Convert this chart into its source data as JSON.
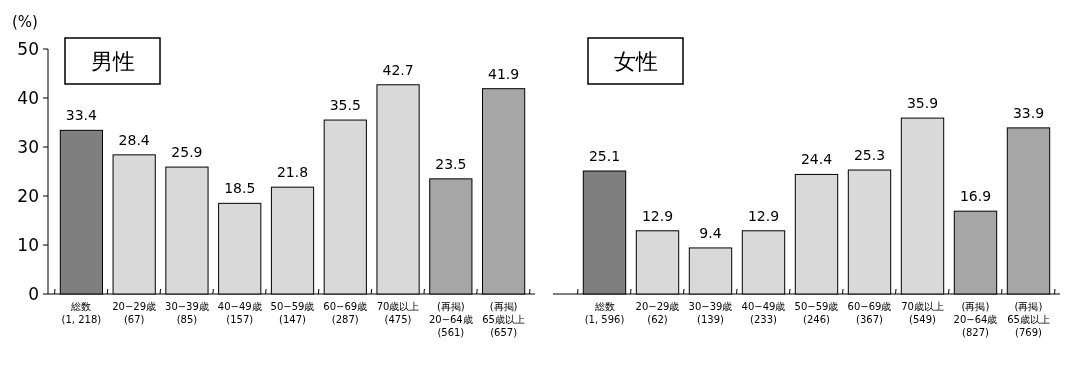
{
  "chart_data": [
    {
      "type": "bar",
      "title": "男性",
      "ylabel": "(%)",
      "categories": [
        "総数\n(1, 218)",
        "20−29歳\n(67)",
        "30−39歳\n(85)",
        "40−49歳\n(157)",
        "50−59歳\n(147)",
        "60−69歳\n(287)",
        "70歳以上\n(475)",
        "(再掲)\n20−64歳\n(561)",
        "(再掲)\n65歳以上\n(657)"
      ],
      "values": [
        33.4,
        28.4,
        25.9,
        18.5,
        21.8,
        35.5,
        42.7,
        23.5,
        41.9
      ],
      "colors": [
        "#7f7f7f",
        "#d9d9d9",
        "#d9d9d9",
        "#d9d9d9",
        "#d9d9d9",
        "#d9d9d9",
        "#d9d9d9",
        "#a6a6a6",
        "#a6a6a6"
      ],
      "ylim": [
        0,
        50
      ],
      "yticks": [
        0,
        10,
        20,
        30,
        40,
        50
      ],
      "data_labels": true
    },
    {
      "type": "bar",
      "title": "女性",
      "categories": [
        "総数\n(1, 596)",
        "20−29歳\n(62)",
        "30−39歳\n(139)",
        "40−49歳\n(233)",
        "50−59歳\n(246)",
        "60−69歳\n(367)",
        "70歳以上\n(549)",
        "(再掲)\n20−64歳\n(827)",
        "(再掲)\n65歳以上\n(769)"
      ],
      "values": [
        25.1,
        12.9,
        9.4,
        12.9,
        24.4,
        25.3,
        35.9,
        16.9,
        33.9
      ],
      "colors": [
        "#7f7f7f",
        "#d9d9d9",
        "#d9d9d9",
        "#d9d9d9",
        "#d9d9d9",
        "#d9d9d9",
        "#d9d9d9",
        "#a6a6a6",
        "#a6a6a6"
      ],
      "ylim": [
        0,
        50
      ],
      "tick_labels": "x",
      "data_labels": true
    }
  ]
}
